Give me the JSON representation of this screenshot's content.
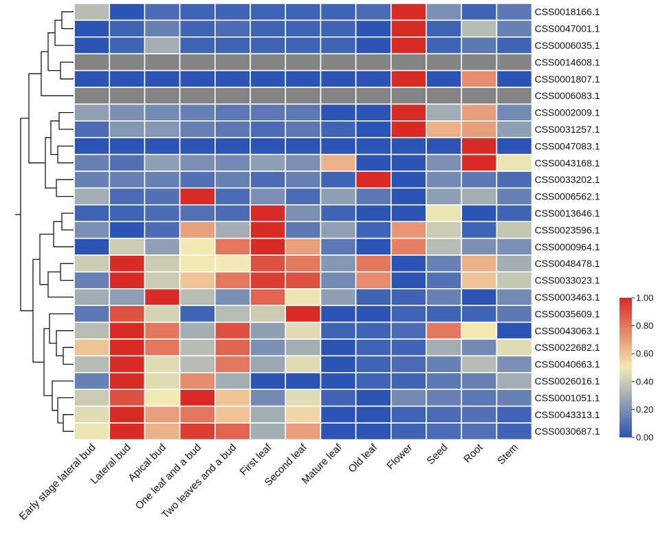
{
  "chart_data": {
    "type": "heatmap",
    "columns": [
      "Early stage lateral bud",
      "Lateral bud",
      "Apical bud",
      "One leaf and a bud",
      "Two leaves and a bud",
      "First leaf",
      "Second leaf",
      "Mature leaf",
      "Old leaf",
      "Flower",
      "Seed",
      "Root",
      "Stem"
    ],
    "rows": [
      "CSS0018166.1",
      "CSS0047001.1",
      "CSS0006035.1",
      "CSS0014608.1",
      "CSS0001807.1",
      "CSS0006083.1",
      "CSS0002009.1",
      "CSS0031257.1",
      "CSS0047083.1",
      "CSS0043168.1",
      "CSS0033202.1",
      "CSS0006562.1",
      "CSS0013646.1",
      "CSS0023596.1",
      "CSS0000964.1",
      "CSS0048478.1",
      "CSS0033023.1",
      "CSS0003463.1",
      "CSS0035609.1",
      "CSS0043063.1",
      "CSS0022682.1",
      "CSS0040663.1",
      "CSS0026016.1",
      "CSS0001051.1",
      "CSS0043313.1",
      "CSS0030687.1"
    ],
    "values": [
      [
        0.35,
        0.0,
        0.08,
        0.05,
        0.05,
        0.05,
        0.05,
        0.05,
        0.08,
        1.0,
        0.2,
        0.05,
        0.12
      ],
      [
        0.0,
        0.05,
        0.15,
        0.05,
        0.08,
        0.05,
        0.05,
        0.05,
        0.0,
        1.0,
        0.05,
        0.35,
        0.15
      ],
      [
        0.0,
        0.05,
        0.3,
        0.05,
        0.05,
        0.05,
        0.05,
        0.05,
        0.0,
        1.0,
        0.05,
        0.12,
        0.05
      ],
      [
        null,
        null,
        null,
        null,
        null,
        null,
        null,
        null,
        null,
        null,
        null,
        null,
        null
      ],
      [
        0.0,
        0.0,
        0.0,
        0.0,
        0.0,
        0.0,
        0.0,
        0.0,
        0.0,
        1.0,
        0.0,
        0.75,
        0.0
      ],
      [
        null,
        null,
        null,
        null,
        null,
        null,
        null,
        null,
        null,
        null,
        null,
        null,
        null
      ],
      [
        0.25,
        0.2,
        0.18,
        0.15,
        0.12,
        0.12,
        0.12,
        0.0,
        0.0,
        1.0,
        0.3,
        0.7,
        0.18
      ],
      [
        0.08,
        0.22,
        0.22,
        0.15,
        0.12,
        0.08,
        0.12,
        0.05,
        0.0,
        1.0,
        0.65,
        0.7,
        0.25
      ],
      [
        0.0,
        0.0,
        0.0,
        0.0,
        0.0,
        0.0,
        0.0,
        0.0,
        0.0,
        0.0,
        0.0,
        1.0,
        0.0
      ],
      [
        0.15,
        0.1,
        0.25,
        0.2,
        0.18,
        0.25,
        0.2,
        0.65,
        0.0,
        0.0,
        0.2,
        1.0,
        0.48
      ],
      [
        0.15,
        0.15,
        0.15,
        0.1,
        0.15,
        0.08,
        0.15,
        0.05,
        1.0,
        0.0,
        0.18,
        0.12,
        0.08
      ],
      [
        0.3,
        0.08,
        0.1,
        1.0,
        0.08,
        0.2,
        0.08,
        0.25,
        0.12,
        0.0,
        0.25,
        0.3,
        0.15
      ],
      [
        0.05,
        0.05,
        0.08,
        0.1,
        0.08,
        1.0,
        0.2,
        0.05,
        0.0,
        0.0,
        0.48,
        0.0,
        0.05
      ],
      [
        0.2,
        0.0,
        0.08,
        0.7,
        0.3,
        1.0,
        0.12,
        0.25,
        0.05,
        0.72,
        0.4,
        0.05,
        0.38
      ],
      [
        0.0,
        0.4,
        0.25,
        0.5,
        0.8,
        1.0,
        0.7,
        0.12,
        0.0,
        0.78,
        0.35,
        0.2,
        0.2
      ],
      [
        0.4,
        1.0,
        0.4,
        0.5,
        0.5,
        0.9,
        0.8,
        0.22,
        0.8,
        0.0,
        0.15,
        0.65,
        0.3
      ],
      [
        0.15,
        1.0,
        0.4,
        0.6,
        0.8,
        0.95,
        0.9,
        0.18,
        0.75,
        0.0,
        0.1,
        0.6,
        0.38
      ],
      [
        0.3,
        0.25,
        1.0,
        0.35,
        0.2,
        0.85,
        0.48,
        0.25,
        0.05,
        0.05,
        0.15,
        0.0,
        0.18
      ],
      [
        0.12,
        0.9,
        0.42,
        0.05,
        0.35,
        0.4,
        1.0,
        0.0,
        0.0,
        0.05,
        0.05,
        0.05,
        0.12
      ],
      [
        0.35,
        1.0,
        0.8,
        0.3,
        0.9,
        0.25,
        0.45,
        0.05,
        0.05,
        0.08,
        0.8,
        0.5,
        0.0
      ],
      [
        0.6,
        1.0,
        0.8,
        0.35,
        0.85,
        0.2,
        0.3,
        0.0,
        0.05,
        0.05,
        0.3,
        0.18,
        0.45
      ],
      [
        0.35,
        1.0,
        0.45,
        0.35,
        0.8,
        0.28,
        0.45,
        0.0,
        0.05,
        0.08,
        0.15,
        0.35,
        0.2
      ],
      [
        0.15,
        1.0,
        0.45,
        0.75,
        0.3,
        0.0,
        0.0,
        0.0,
        0.05,
        0.05,
        0.12,
        0.15,
        0.3
      ],
      [
        0.4,
        0.9,
        0.5,
        1.0,
        0.6,
        0.18,
        0.45,
        0.05,
        0.0,
        0.18,
        0.15,
        0.12,
        0.15
      ],
      [
        0.45,
        1.0,
        0.7,
        0.8,
        0.6,
        0.3,
        0.55,
        0.0,
        0.0,
        0.05,
        0.08,
        0.1,
        0.05
      ],
      [
        0.48,
        1.0,
        0.65,
        0.95,
        0.85,
        0.3,
        0.7,
        0.0,
        0.0,
        0.05,
        0.08,
        0.1,
        0.05
      ]
    ],
    "colorbar": {
      "min": 0.0,
      "max": 1.0,
      "tick_labels": [
        "1.00",
        "0.80",
        "0.60",
        "0.40",
        "0.20",
        "0.00"
      ]
    },
    "colors": {
      "low": "#2b54b5",
      "mid": "#f3eab3",
      "high": "#d92b26",
      "missing": "#848484"
    },
    "title": "",
    "xlabel": "",
    "ylabel": ""
  }
}
